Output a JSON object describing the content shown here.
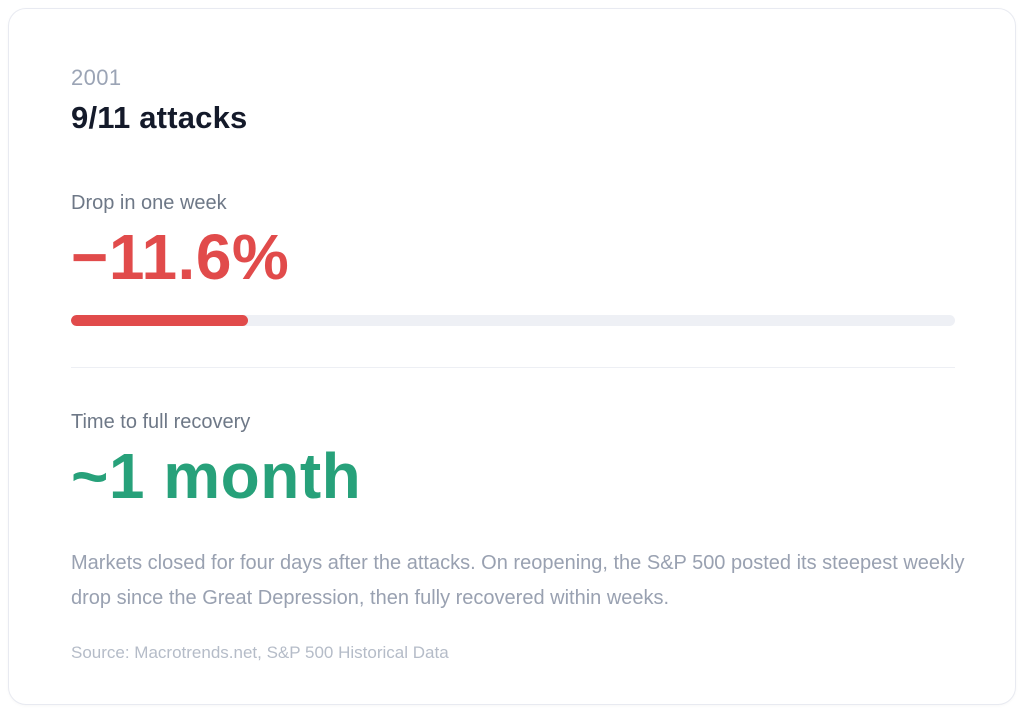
{
  "card": {
    "year": "2001",
    "title": "9/11 attacks",
    "drop": {
      "label": "Drop in one week",
      "value": "−11.6%",
      "bar_width": "20%",
      "color": "#e14b4b",
      "track_color": "#eef0f5"
    },
    "recovery": {
      "label": "Time to full recovery",
      "value": "~1 month",
      "color": "#27a17a"
    },
    "description": "Markets closed for four days after the attacks. On reopening, the S&P 500 posted its steepest weekly drop since the Great Depression, then fully recovered within weeks.",
    "source": "Source: Macrotrends.net, S&P 500 Historical Data"
  },
  "chart_data": {
    "type": "bar",
    "title": "9/11 attacks (2001) — S&P 500 market impact",
    "categories": [
      "Drop in one week"
    ],
    "values": [
      -11.6
    ],
    "unit": "%",
    "bar_fill_fraction": 0.2,
    "annotations": [
      "Time to full recovery: ~1 month"
    ],
    "legend": "off",
    "grid": "off"
  }
}
